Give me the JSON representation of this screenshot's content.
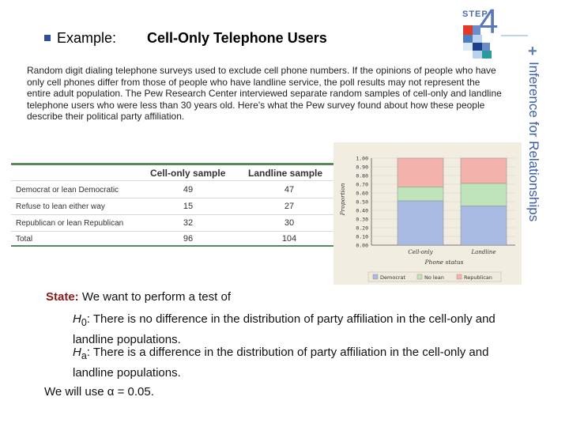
{
  "header": {
    "title_prefix": "Example:",
    "title_main": "Cell-Only Telephone Users"
  },
  "logo": {
    "step_label": "STEP",
    "step_number": "4",
    "plus": "+",
    "vertical_title": "Inference for Relationships"
  },
  "intro": "Random digit dialing telephone surveys used to exclude cell phone numbers. If the opinions of people who have only cell phones differ from those of people who have landline service, the poll results may not represent the entire adult population. The Pew Research Center interviewed separate random samples of cell-only and landline telephone users who were less than 30 years old. Here's what the Pew survey found about how these people describe their political party affiliation.",
  "table": {
    "headers": [
      "Cell-only sample",
      "Landline sample"
    ],
    "rows": [
      {
        "label": "Democrat or lean Democratic",
        "cell": "49",
        "land": "47"
      },
      {
        "label": "Refuse to lean either way",
        "cell": "15",
        "land": "27"
      },
      {
        "label": "Republican or lean Republican",
        "cell": "32",
        "land": "30"
      },
      {
        "label": "Total",
        "cell": "96",
        "land": "104"
      }
    ]
  },
  "chart_data": {
    "type": "bar",
    "stacked": true,
    "categories": [
      "Cell-only",
      "Landline"
    ],
    "series": [
      {
        "name": "Democrat",
        "values": [
          0.51,
          0.45
        ],
        "color": "#a9bbe3"
      },
      {
        "name": "No lean",
        "values": [
          0.16,
          0.26
        ],
        "color": "#bfe3bb"
      },
      {
        "name": "Republican",
        "values": [
          0.33,
          0.29
        ],
        "color": "#f3b3ac"
      }
    ],
    "ylabel": "Proportion",
    "xlabel": "Phone status",
    "ylim": [
      0,
      1
    ],
    "yticks": [
      "0.00",
      "0.10",
      "0.20",
      "0.30",
      "0.40",
      "0.50",
      "0.60",
      "0.70",
      "0.80",
      "0.90",
      "1.00"
    ],
    "legend_position": "bottom"
  },
  "state": {
    "label": "State:",
    "text": "We want to perform a test of",
    "h0_sym": "H",
    "h0_sub": "0",
    "h0_text": ": There is no difference in the distribution of party affiliation in the cell-only and landline populations.",
    "ha_sym": "H",
    "ha_sub": "a",
    "ha_text": ": There is a difference in the distribution of party affiliation in the cell-only and landline populations.",
    "alpha_text": "We will use α = 0.05."
  }
}
